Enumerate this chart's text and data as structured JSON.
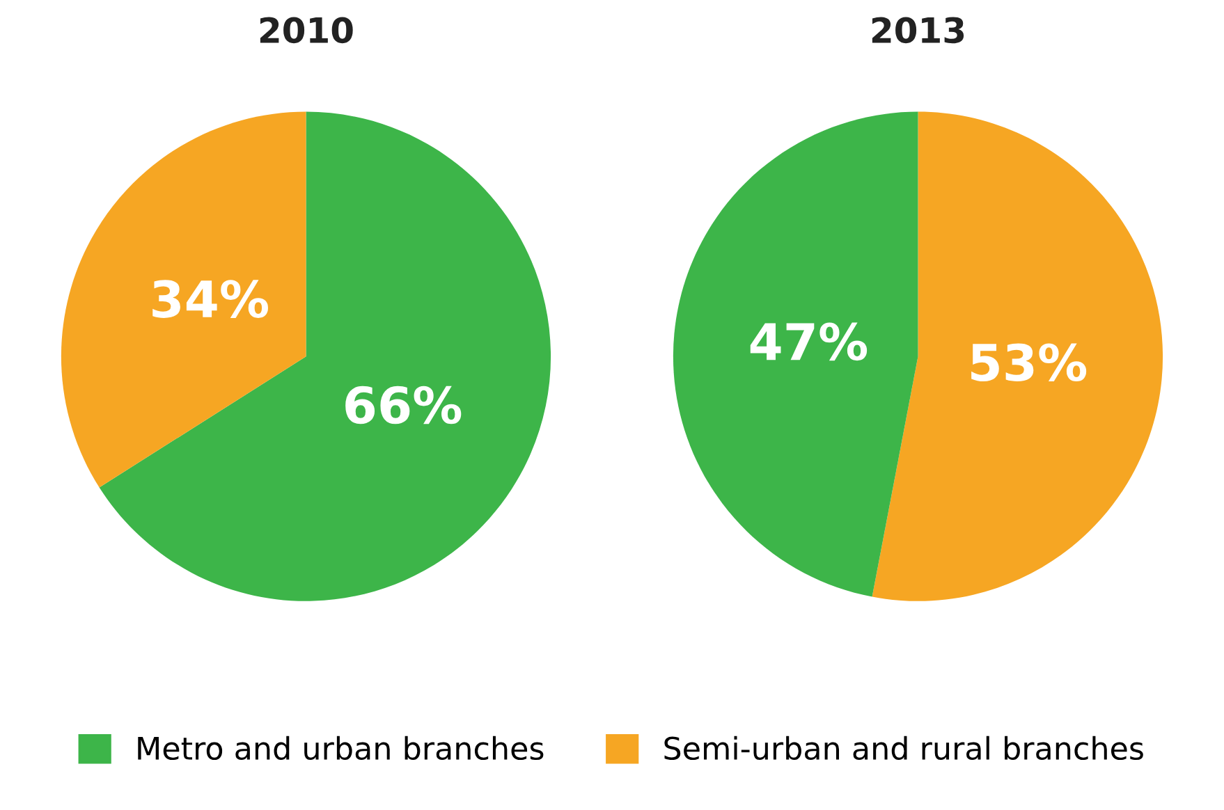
{
  "chart_data": [
    {
      "type": "pie",
      "title": "2010",
      "categories": [
        "Metro and urban branches",
        "Semi-urban and rural branches"
      ],
      "values": [
        66,
        34
      ],
      "colors": [
        "#3db549",
        "#f6a623"
      ],
      "value_labels": [
        "66%",
        "34%"
      ],
      "legend": "bottom"
    },
    {
      "type": "pie",
      "title": "2013",
      "categories": [
        null,
        null
      ],
      "values": [
        53,
        47
      ],
      "colors": [
        "#f6a623",
        "#3db549"
      ],
      "value_labels": [
        "53%",
        "47%"
      ]
    }
  ]
}
